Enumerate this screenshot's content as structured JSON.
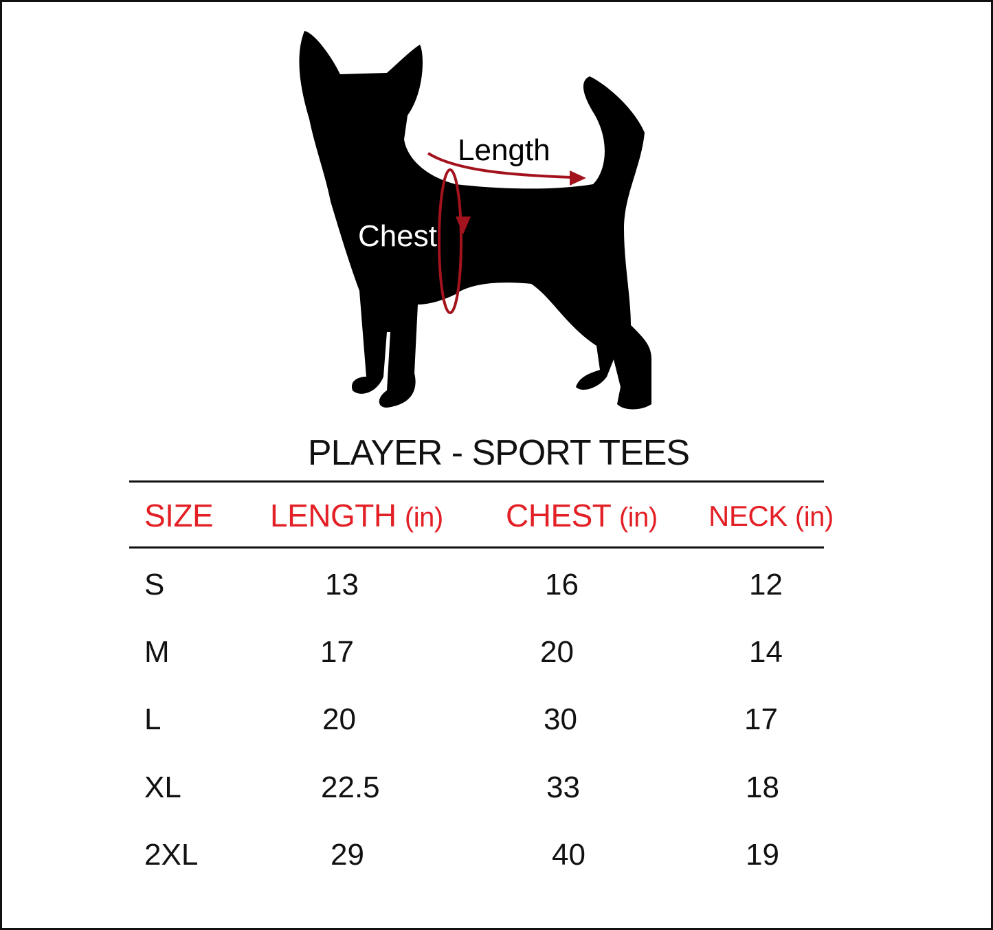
{
  "illustration": {
    "length_label": "Length",
    "chest_label": "Chest",
    "arrow_color": "#a3131d",
    "silhouette": "dog"
  },
  "title": "PLAYER - SPORT TEES",
  "table": {
    "header_color": "#e32026",
    "headers": [
      {
        "label": "SIZE",
        "unit": ""
      },
      {
        "label": "LENGTH",
        "unit": "(in)"
      },
      {
        "label": "CHEST",
        "unit": "(in)"
      },
      {
        "label": "NECK",
        "unit": "(in)"
      }
    ],
    "rows": [
      {
        "size": "S",
        "length": "13",
        "chest": "16",
        "neck": "12"
      },
      {
        "size": "M",
        "length": "17",
        "chest": "20",
        "neck": "14"
      },
      {
        "size": "L",
        "length": "20",
        "chest": "30",
        "neck": "17"
      },
      {
        "size": "XL",
        "length": "22.5",
        "chest": "33",
        "neck": "18"
      },
      {
        "size": "2XL",
        "length": "29",
        "chest": "40",
        "neck": "19"
      }
    ]
  }
}
